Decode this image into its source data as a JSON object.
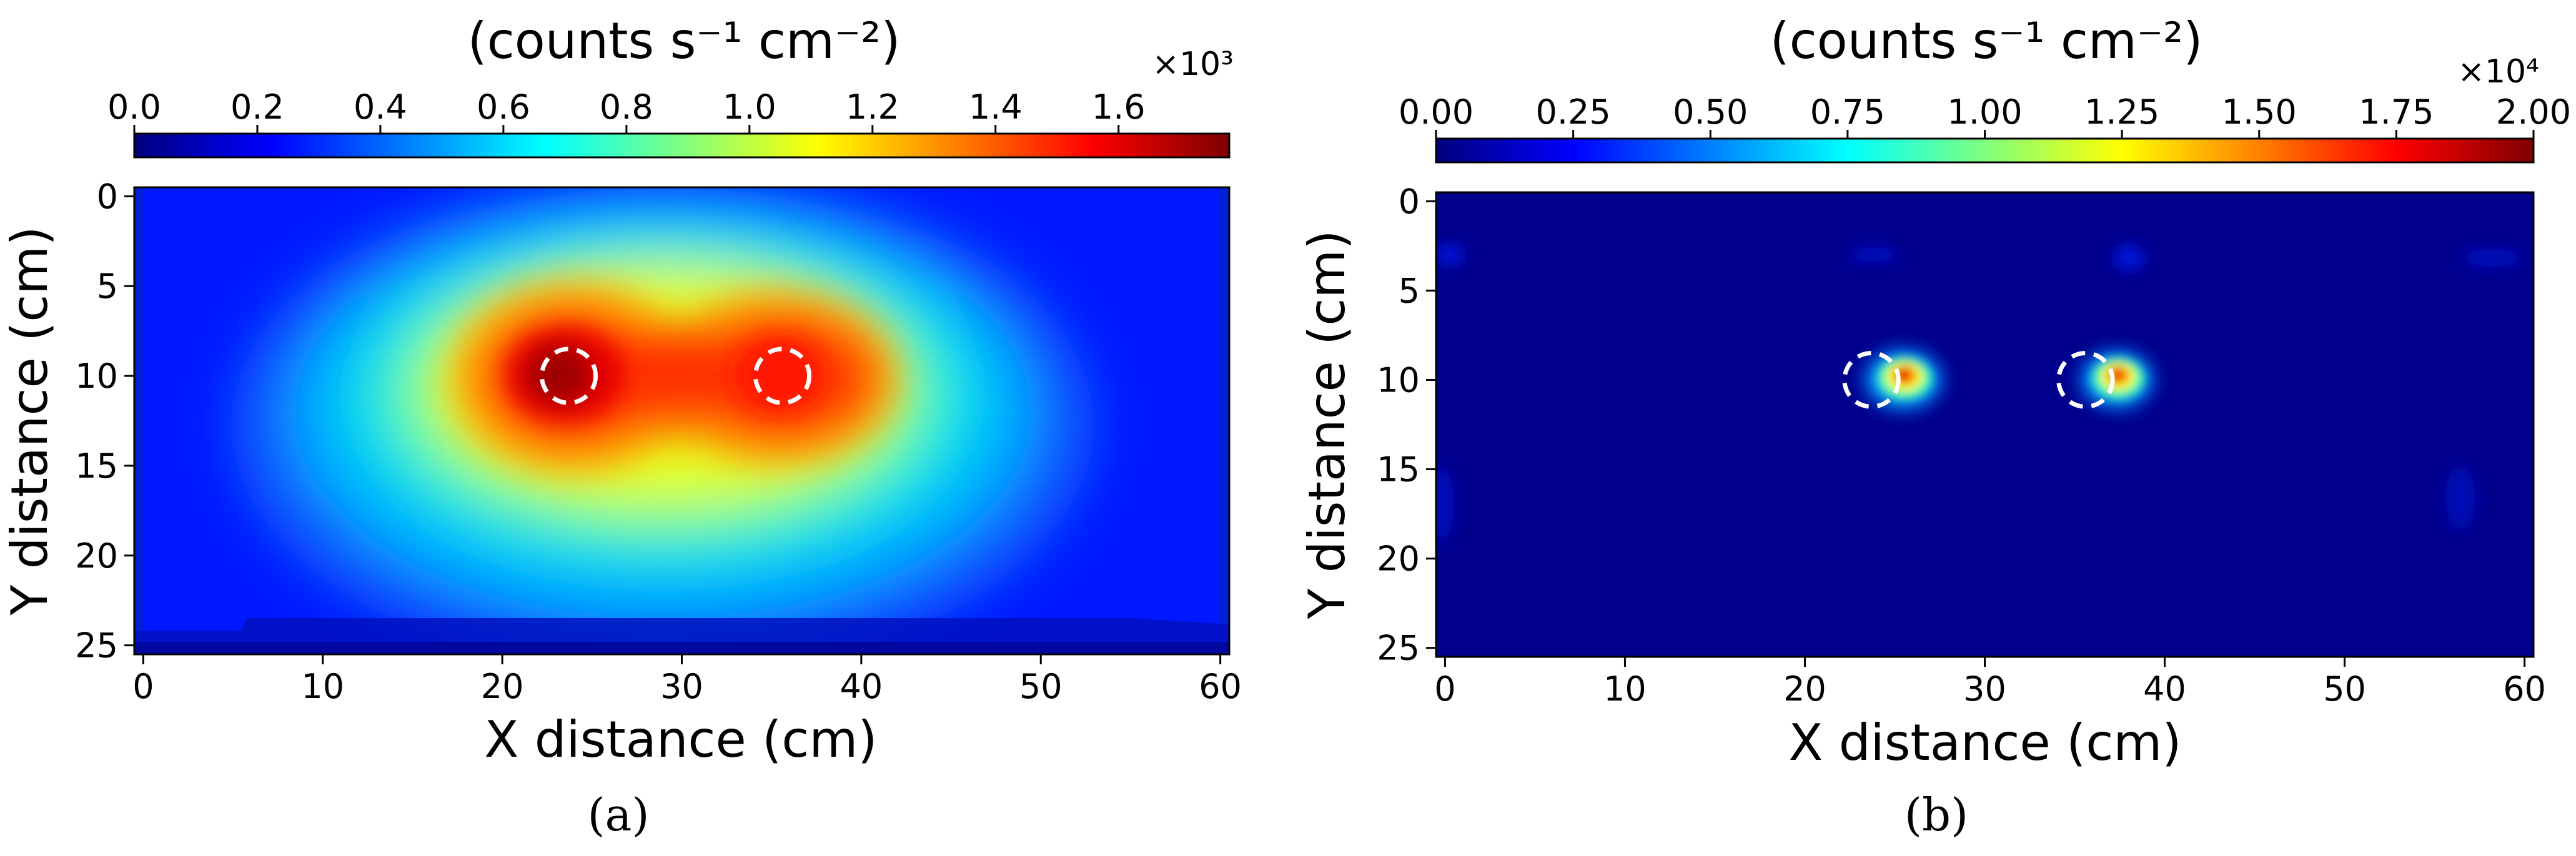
{
  "chart_data": [
    {
      "type": "heatmap",
      "panel_label": "(a)",
      "colorbar_label": "(counts s⁻¹ cm⁻²)",
      "colorbar_multiplier": "×10³",
      "colorbar_range": [
        0,
        1.78
      ],
      "colorbar_ticks": [
        "0.0",
        "0.2",
        "0.4",
        "0.6",
        "0.8",
        "1.0",
        "1.2",
        "1.4",
        "1.6"
      ],
      "colorbar_tick_values": [
        0.0,
        0.2,
        0.4,
        0.6,
        0.8,
        1.0,
        1.2,
        1.4,
        1.6
      ],
      "xlabel": "X distance (cm)",
      "ylabel": "Y distance (cm)",
      "xlim": [
        -0.5,
        60.5
      ],
      "ylim": [
        25.5,
        -0.5
      ],
      "xticks": [
        "0",
        "10",
        "20",
        "30",
        "40",
        "50",
        "60"
      ],
      "xtick_values": [
        0,
        10,
        20,
        30,
        40,
        50,
        60
      ],
      "yticks": [
        "0",
        "5",
        "10",
        "15",
        "20",
        "25"
      ],
      "ytick_values": [
        0,
        5,
        10,
        15,
        20,
        25
      ],
      "colormap": "jet",
      "sources": [
        {
          "x": 23.7,
          "y": 10.0,
          "radius": 1.5
        },
        {
          "x": 35.6,
          "y": 10.0,
          "radius": 1.5
        }
      ]
    },
    {
      "type": "heatmap",
      "panel_label": "(b)",
      "colorbar_label": "(counts s⁻¹ cm⁻²)",
      "colorbar_multiplier": "×10⁴",
      "colorbar_range": [
        0,
        2.0
      ],
      "colorbar_ticks": [
        "0.00",
        "0.25",
        "0.50",
        "0.75",
        "1.00",
        "1.25",
        "1.50",
        "1.75",
        "2.00"
      ],
      "colorbar_tick_values": [
        0.0,
        0.25,
        0.5,
        0.75,
        1.0,
        1.25,
        1.5,
        1.75,
        2.0
      ],
      "xlabel": "X distance (cm)",
      "ylabel": "Y distance (cm)",
      "xlim": [
        -0.5,
        60.5
      ],
      "ylim": [
        25.5,
        -0.5
      ],
      "xticks": [
        "0",
        "10",
        "20",
        "30",
        "40",
        "50",
        "60"
      ],
      "xtick_values": [
        0,
        10,
        20,
        30,
        40,
        50,
        60
      ],
      "yticks": [
        "0",
        "5",
        "10",
        "15",
        "20",
        "25"
      ],
      "ytick_values": [
        0,
        5,
        10,
        15,
        20,
        25
      ],
      "colormap": "jet",
      "sources": [
        {
          "x": 23.7,
          "y": 10.0,
          "radius": 1.5
        },
        {
          "x": 35.6,
          "y": 10.0,
          "radius": 1.5
        }
      ]
    }
  ],
  "colors": {
    "background": "#ffffff",
    "axis": "#000000",
    "source_marker": "#ffffff"
  }
}
